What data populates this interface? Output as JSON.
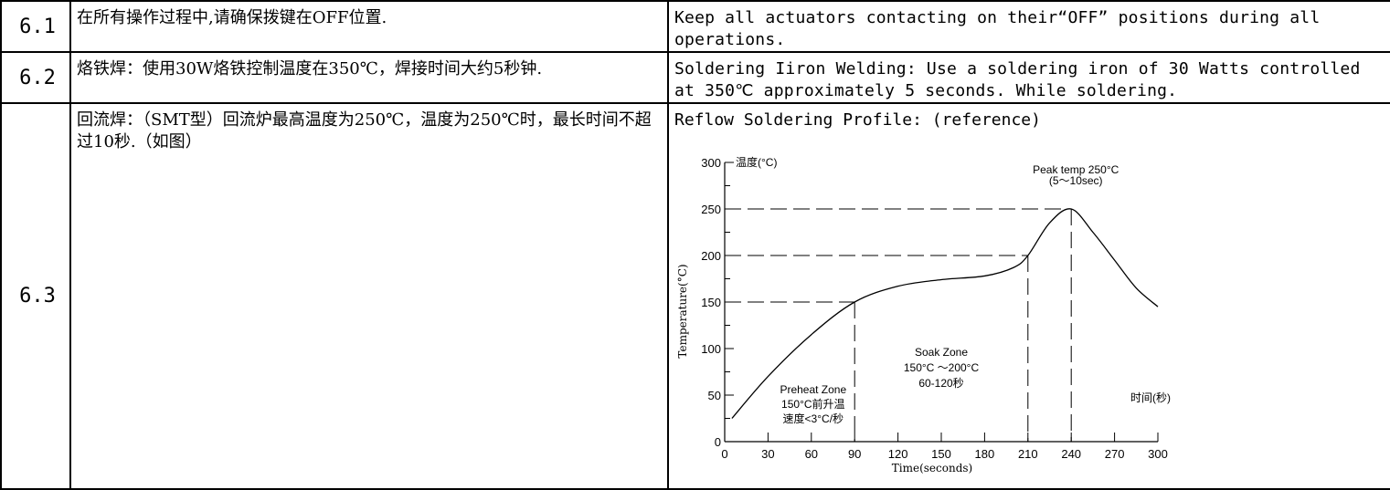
{
  "rows": [
    {
      "num": "6.1",
      "zh": "在所有操作过程中,请确保拨键在OFF位置.",
      "en": "Keep all actuators contacting on their“OFF” positions during all operations."
    },
    {
      "num": "6.2",
      "zh": "烙铁焊：使用30W烙铁控制温度在350℃，焊接时间大约5秒钟.",
      "en": "Soldering Iiron Welding: Use a soldering iron of 30 Watts controlled at 350℃ approximately 5 seconds. While soldering."
    },
    {
      "num": "6.3",
      "zh": "回流焊：（SMT型）回流炉最高温度为250℃，温度为250℃时，最长时间不超过10秒.（如图）",
      "en": "Reflow Soldering Profile: (reference)"
    }
  ],
  "chart_data": {
    "type": "line",
    "ylabel_top": "温度(°C)",
    "ylabel": "Temperature(°C)",
    "xlabel": "Time(seconds)",
    "xlabel_right": "时间(秒)",
    "xlim": [
      0,
      300
    ],
    "ylim": [
      0,
      300
    ],
    "x_ticks": [
      0,
      30,
      60,
      90,
      120,
      150,
      180,
      210,
      240,
      270,
      300
    ],
    "y_ticks": [
      0,
      50,
      100,
      150,
      200,
      250,
      300
    ],
    "series": [
      {
        "x": [
          5,
          30,
          60,
          90,
          120,
          150,
          180,
          200,
          210,
          225,
          240,
          255,
          270,
          285,
          300
        ],
        "y": [
          25,
          70,
          115,
          150,
          167,
          174,
          178,
          187,
          200,
          235,
          250,
          225,
          195,
          165,
          145
        ]
      }
    ],
    "reference_lines": [
      {
        "x": 90,
        "y": 150
      },
      {
        "x": 210,
        "y": 200
      },
      {
        "x": 240,
        "y": 250
      }
    ],
    "annotations": {
      "peak": [
        "Peak temp 250°C",
        "(5～10sec)"
      ],
      "soak": [
        "Soak Zone",
        "150°C ～200°C",
        "60-120秒"
      ],
      "preheat": [
        "Preheat Zone",
        "150°C前升温",
        "速度<3°C/秒"
      ]
    }
  }
}
